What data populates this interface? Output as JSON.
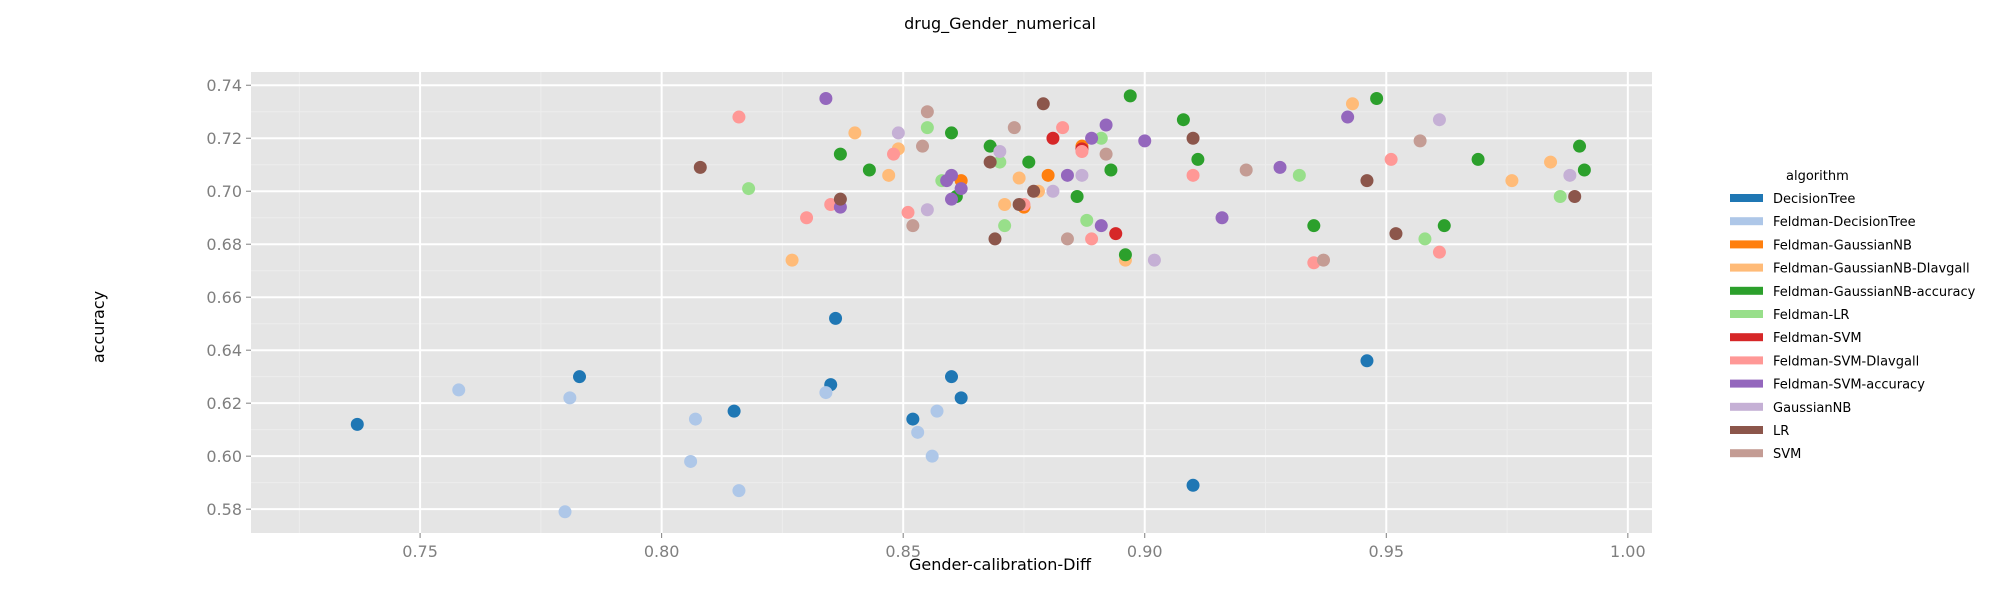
{
  "chart_data": {
    "type": "scatter",
    "title": "drug_Gender_numerical",
    "xlabel": "Gender-calibration-Diff",
    "ylabel": "accuracy",
    "xlim": [
      0.715,
      1.005
    ],
    "ylim": [
      0.571,
      0.745
    ],
    "xticks": [
      0.75,
      0.8,
      0.85,
      0.9,
      0.95,
      1.0
    ],
    "xtick_labels": [
      "0.75",
      "0.80",
      "0.85",
      "0.90",
      "0.95",
      "1.00"
    ],
    "yticks": [
      0.58,
      0.6,
      0.62,
      0.64,
      0.66,
      0.68,
      0.7,
      0.72,
      0.74
    ],
    "ytick_labels": [
      "0.58",
      "0.60",
      "0.62",
      "0.64",
      "0.66",
      "0.68",
      "0.70",
      "0.72",
      "0.74"
    ],
    "grid": true,
    "background": "#e5e5e5",
    "legend_title": "algorithm",
    "legend_position": "right",
    "series": [
      {
        "name": "DecisionTree",
        "color": "#1f77b4",
        "points": [
          [
            0.737,
            0.612
          ],
          [
            0.783,
            0.63
          ],
          [
            0.815,
            0.617
          ],
          [
            0.835,
            0.627
          ],
          [
            0.836,
            0.652
          ],
          [
            0.852,
            0.614
          ],
          [
            0.86,
            0.63
          ],
          [
            0.862,
            0.622
          ],
          [
            0.91,
            0.589
          ],
          [
            0.946,
            0.636
          ]
        ]
      },
      {
        "name": "Feldman-DecisionTree",
        "color": "#aec7e8",
        "points": [
          [
            0.758,
            0.625
          ],
          [
            0.78,
            0.579
          ],
          [
            0.781,
            0.622
          ],
          [
            0.806,
            0.598
          ],
          [
            0.807,
            0.614
          ],
          [
            0.816,
            0.587
          ],
          [
            0.834,
            0.624
          ],
          [
            0.853,
            0.609
          ],
          [
            0.856,
            0.6
          ],
          [
            0.857,
            0.617
          ]
        ]
      },
      {
        "name": "Feldman-GaussianNB",
        "color": "#ff7f0e",
        "points": [
          [
            0.862,
            0.704
          ],
          [
            0.875,
            0.694
          ],
          [
            0.88,
            0.706
          ],
          [
            0.887,
            0.717
          ]
        ]
      },
      {
        "name": "Feldman-GaussianNB-DIavgall",
        "color": "#ffbb78",
        "points": [
          [
            0.827,
            0.674
          ],
          [
            0.84,
            0.722
          ],
          [
            0.847,
            0.706
          ],
          [
            0.849,
            0.716
          ],
          [
            0.871,
            0.695
          ],
          [
            0.874,
            0.705
          ],
          [
            0.878,
            0.7
          ],
          [
            0.896,
            0.674
          ],
          [
            0.943,
            0.733
          ],
          [
            0.976,
            0.704
          ],
          [
            0.984,
            0.711
          ]
        ]
      },
      {
        "name": "Feldman-GaussianNB-accuracy",
        "color": "#2ca02c",
        "points": [
          [
            0.837,
            0.714
          ],
          [
            0.843,
            0.708
          ],
          [
            0.86,
            0.722
          ],
          [
            0.861,
            0.698
          ],
          [
            0.868,
            0.717
          ],
          [
            0.876,
            0.711
          ],
          [
            0.886,
            0.698
          ],
          [
            0.893,
            0.708
          ],
          [
            0.896,
            0.676
          ],
          [
            0.897,
            0.736
          ],
          [
            0.908,
            0.727
          ],
          [
            0.911,
            0.712
          ],
          [
            0.935,
            0.687
          ],
          [
            0.948,
            0.735
          ],
          [
            0.969,
            0.712
          ],
          [
            0.962,
            0.687
          ],
          [
            0.99,
            0.717
          ],
          [
            0.991,
            0.708
          ]
        ]
      },
      {
        "name": "Feldman-LR",
        "color": "#98df8a",
        "points": [
          [
            0.818,
            0.701
          ],
          [
            0.855,
            0.724
          ],
          [
            0.858,
            0.704
          ],
          [
            0.87,
            0.711
          ],
          [
            0.871,
            0.687
          ],
          [
            0.888,
            0.689
          ],
          [
            0.891,
            0.72
          ],
          [
            0.932,
            0.706
          ],
          [
            0.958,
            0.682
          ],
          [
            0.986,
            0.698
          ]
        ]
      },
      {
        "name": "Feldman-SVM",
        "color": "#d62728",
        "points": [
          [
            0.881,
            0.72
          ],
          [
            0.887,
            0.716
          ],
          [
            0.894,
            0.684
          ]
        ]
      },
      {
        "name": "Feldman-SVM-DIavgall",
        "color": "#ff9896",
        "points": [
          [
            0.816,
            0.728
          ],
          [
            0.83,
            0.69
          ],
          [
            0.835,
            0.695
          ],
          [
            0.848,
            0.714
          ],
          [
            0.851,
            0.692
          ],
          [
            0.875,
            0.695
          ],
          [
            0.883,
            0.724
          ],
          [
            0.887,
            0.715
          ],
          [
            0.889,
            0.682
          ],
          [
            0.91,
            0.706
          ],
          [
            0.935,
            0.673
          ],
          [
            0.951,
            0.712
          ],
          [
            0.961,
            0.677
          ]
        ]
      },
      {
        "name": "Feldman-SVM-accuracy",
        "color": "#9467bd",
        "points": [
          [
            0.834,
            0.735
          ],
          [
            0.837,
            0.694
          ],
          [
            0.859,
            0.704
          ],
          [
            0.86,
            0.697
          ],
          [
            0.862,
            0.701
          ],
          [
            0.884,
            0.706
          ],
          [
            0.889,
            0.72
          ],
          [
            0.891,
            0.687
          ],
          [
            0.892,
            0.725
          ],
          [
            0.9,
            0.719
          ],
          [
            0.916,
            0.69
          ],
          [
            0.928,
            0.709
          ],
          [
            0.942,
            0.728
          ],
          [
            0.86,
            0.706
          ]
        ]
      },
      {
        "name": "GaussianNB",
        "color": "#c5b0d5",
        "points": [
          [
            0.849,
            0.722
          ],
          [
            0.855,
            0.693
          ],
          [
            0.87,
            0.715
          ],
          [
            0.881,
            0.7
          ],
          [
            0.887,
            0.706
          ],
          [
            0.902,
            0.674
          ],
          [
            0.961,
            0.727
          ],
          [
            0.988,
            0.706
          ]
        ]
      },
      {
        "name": "LR",
        "color": "#8c564b",
        "points": [
          [
            0.808,
            0.709
          ],
          [
            0.837,
            0.697
          ],
          [
            0.868,
            0.711
          ],
          [
            0.869,
            0.682
          ],
          [
            0.874,
            0.695
          ],
          [
            0.877,
            0.7
          ],
          [
            0.879,
            0.733
          ],
          [
            0.91,
            0.72
          ],
          [
            0.946,
            0.704
          ],
          [
            0.952,
            0.684
          ],
          [
            0.989,
            0.698
          ]
        ]
      },
      {
        "name": "SVM",
        "color": "#c49c94",
        "points": [
          [
            0.852,
            0.687
          ],
          [
            0.854,
            0.717
          ],
          [
            0.855,
            0.73
          ],
          [
            0.873,
            0.724
          ],
          [
            0.884,
            0.682
          ],
          [
            0.892,
            0.714
          ],
          [
            0.921,
            0.708
          ],
          [
            0.937,
            0.674
          ],
          [
            0.957,
            0.719
          ]
        ]
      }
    ]
  }
}
